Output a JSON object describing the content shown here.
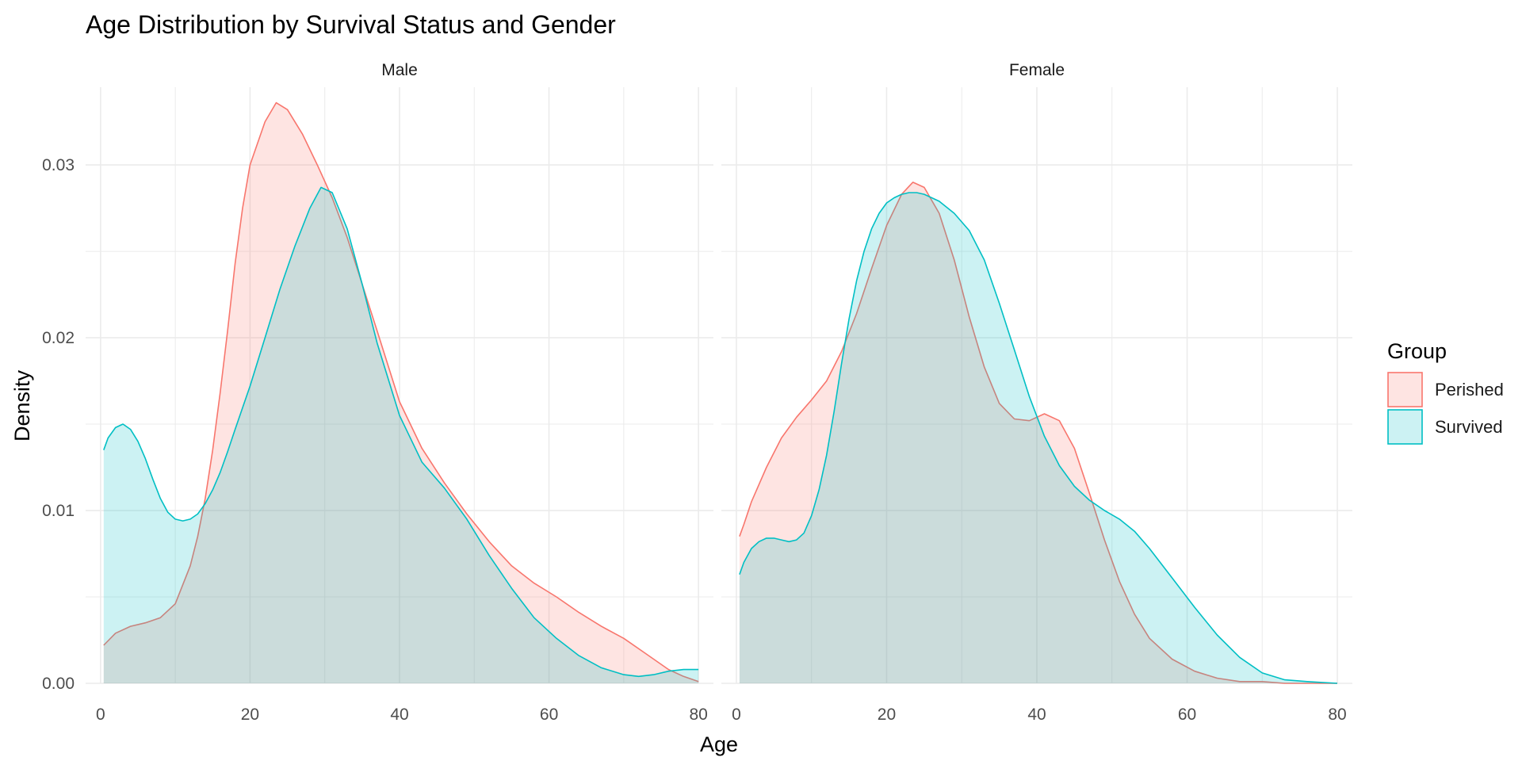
{
  "chart_data": {
    "type": "area",
    "title": "Age Distribution by Survival Status and Gender",
    "xlabel": "Age",
    "ylabel": "Density",
    "xlim": [
      -2,
      82
    ],
    "ylim": [
      0,
      0.0345
    ],
    "x_ticks": [
      0,
      20,
      40,
      60,
      80
    ],
    "y_ticks": [
      0.0,
      0.01,
      0.02,
      0.03
    ],
    "y_tick_labels": [
      "0.00",
      "0.01",
      "0.02",
      "0.03"
    ],
    "grid": true,
    "legend": {
      "title": "Group",
      "placement": "right",
      "entries": [
        {
          "label": "Perished",
          "color": "#F8766D"
        },
        {
          "label": "Survived",
          "color": "#00BFC4"
        }
      ]
    },
    "colors": {
      "Perished": {
        "line": "#F8766D",
        "fill": "#F8766D"
      },
      "Survived": {
        "line": "#00BFC4",
        "fill": "#00BFC4"
      },
      "grid": "#EBEBEB"
    },
    "panels": [
      {
        "label": "Male",
        "series": [
          {
            "name": "Perished",
            "x": [
              0.42,
              2,
              4,
              6,
              8,
              10,
              12,
              13,
              14,
              15,
              16,
              17,
              18,
              19,
              20,
              22,
              23.5,
              25,
              27,
              29,
              31,
              33,
              35,
              37,
              40,
              43,
              46,
              49,
              52,
              55,
              58,
              61,
              64,
              67,
              70,
              73,
              76,
              78,
              80
            ],
            "y": [
              0.0022,
              0.0029,
              0.0033,
              0.0035,
              0.0038,
              0.0046,
              0.0068,
              0.0085,
              0.0107,
              0.0135,
              0.0168,
              0.0204,
              0.0243,
              0.0275,
              0.03,
              0.0325,
              0.0336,
              0.0332,
              0.0318,
              0.03,
              0.0281,
              0.0258,
              0.0231,
              0.0204,
              0.0163,
              0.0136,
              0.0116,
              0.0098,
              0.0082,
              0.0068,
              0.0058,
              0.005,
              0.0041,
              0.0033,
              0.0026,
              0.0017,
              0.0008,
              0.0004,
              0.0001
            ]
          },
          {
            "name": "Survived",
            "x": [
              0.42,
              1,
              2,
              3,
              4,
              5,
              6,
              7,
              8,
              9,
              10,
              11,
              12,
              13,
              14,
              15,
              16,
              17,
              18,
              20,
              22,
              24,
              26,
              28,
              29.5,
              31,
              33,
              35,
              37,
              40,
              43,
              46,
              49,
              52,
              55,
              58,
              61,
              64,
              67,
              70,
              72,
              74,
              76,
              78,
              80
            ],
            "y": [
              0.0135,
              0.0142,
              0.0148,
              0.015,
              0.0147,
              0.014,
              0.013,
              0.0118,
              0.0107,
              0.0099,
              0.0095,
              0.0094,
              0.0095,
              0.0098,
              0.0104,
              0.0112,
              0.0122,
              0.0134,
              0.0147,
              0.0172,
              0.02,
              0.0228,
              0.0253,
              0.0275,
              0.0287,
              0.0284,
              0.0263,
              0.0231,
              0.0197,
              0.0155,
              0.0128,
              0.0113,
              0.0095,
              0.0074,
              0.0055,
              0.0038,
              0.0026,
              0.0016,
              0.0009,
              0.0005,
              0.0004,
              0.0005,
              0.0007,
              0.0008,
              0.0008
            ]
          }
        ]
      },
      {
        "label": "Female",
        "series": [
          {
            "name": "Perished",
            "x": [
              0.42,
              1,
              2,
              3,
              4,
              6,
              8,
              10,
              12,
              14,
              16,
              18,
              20,
              22,
              23.5,
              25,
              27,
              29,
              31,
              33,
              35,
              37,
              39,
              41,
              43,
              45,
              47,
              49,
              51,
              53,
              55,
              58,
              61,
              64,
              67,
              70,
              73,
              76,
              80
            ],
            "y": [
              0.0085,
              0.0092,
              0.0105,
              0.0115,
              0.0125,
              0.0142,
              0.0154,
              0.0164,
              0.0175,
              0.0192,
              0.0214,
              0.024,
              0.0265,
              0.0283,
              0.029,
              0.0287,
              0.0272,
              0.0245,
              0.0212,
              0.0183,
              0.0162,
              0.0153,
              0.0152,
              0.0156,
              0.0152,
              0.0136,
              0.011,
              0.0083,
              0.0059,
              0.004,
              0.0026,
              0.0014,
              0.0007,
              0.0003,
              0.0001,
              0.0001,
              0.0,
              0.0,
              0.0
            ]
          },
          {
            "name": "Survived",
            "x": [
              0.42,
              1,
              2,
              3,
              4,
              5,
              6,
              7,
              8,
              9,
              10,
              11,
              12,
              13,
              14,
              15,
              16,
              17,
              18,
              19,
              20,
              21,
              22,
              23,
              24,
              25,
              27,
              29,
              31,
              33,
              35,
              37,
              39,
              41,
              43,
              45,
              47,
              49,
              51,
              53,
              55,
              58,
              61,
              64,
              67,
              70,
              73,
              76,
              80
            ],
            "y": [
              0.0063,
              0.007,
              0.0078,
              0.0082,
              0.0084,
              0.0084,
              0.0083,
              0.0082,
              0.0083,
              0.0087,
              0.0097,
              0.0112,
              0.0132,
              0.0157,
              0.0185,
              0.0211,
              0.0233,
              0.025,
              0.0263,
              0.0272,
              0.0278,
              0.0281,
              0.0283,
              0.0284,
              0.0284,
              0.0283,
              0.0279,
              0.0272,
              0.0262,
              0.0245,
              0.022,
              0.0193,
              0.0166,
              0.0143,
              0.0126,
              0.0114,
              0.0106,
              0.01,
              0.0095,
              0.0088,
              0.0078,
              0.0061,
              0.0044,
              0.0028,
              0.0015,
              0.0006,
              0.0002,
              0.0001,
              0.0
            ]
          }
        ]
      }
    ]
  }
}
